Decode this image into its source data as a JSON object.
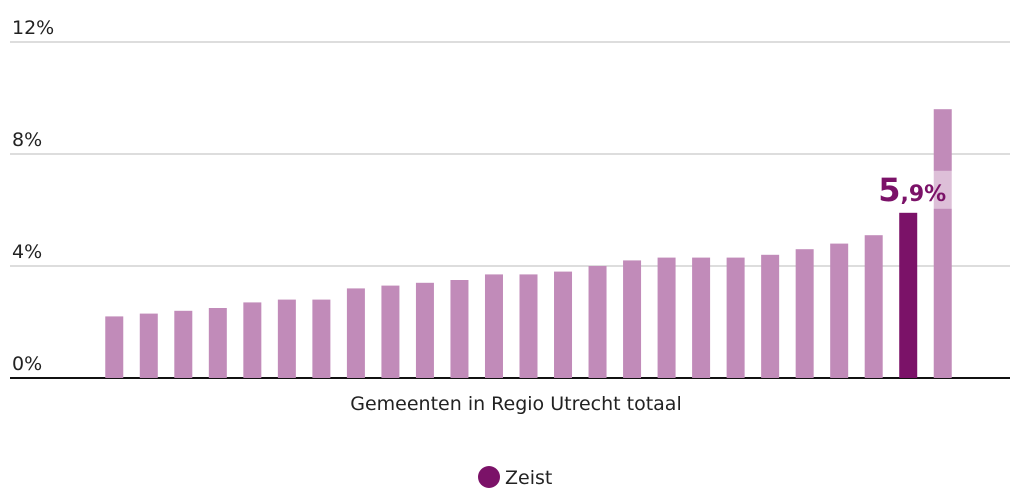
{
  "chart_data": {
    "type": "bar",
    "x_label": "Gemeenten in Regio Utrecht totaal",
    "categories": [
      null,
      null,
      null,
      null,
      null,
      null,
      null,
      null,
      null,
      null,
      null,
      null,
      null,
      null,
      null,
      null,
      null,
      null,
      null,
      null,
      null,
      null,
      null,
      null,
      null
    ],
    "values": [
      2.2,
      2.3,
      2.4,
      2.5,
      2.7,
      2.8,
      2.8,
      3.2,
      3.3,
      3.4,
      3.5,
      3.7,
      3.7,
      3.8,
      4.0,
      4.2,
      4.3,
      4.3,
      4.3,
      4.4,
      4.6,
      4.8,
      5.1,
      5.9,
      9.6
    ],
    "value_labels": [
      null,
      null,
      null,
      null,
      null,
      null,
      null,
      null,
      null,
      null,
      null,
      null,
      null,
      null,
      null,
      null,
      null,
      null,
      null,
      null,
      null,
      null,
      null,
      "5,9%",
      null
    ],
    "colors": [
      "#c18bb9",
      "#c18bb9",
      "#c18bb9",
      "#c18bb9",
      "#c18bb9",
      "#c18bb9",
      "#c18bb9",
      "#c18bb9",
      "#c18bb9",
      "#c18bb9",
      "#c18bb9",
      "#c18bb9",
      "#c18bb9",
      "#c18bb9",
      "#c18bb9",
      "#c18bb9",
      "#c18bb9",
      "#c18bb9",
      "#c18bb9",
      "#c18bb9",
      "#c18bb9",
      "#c18bb9",
      "#c18bb9",
      "#7b1268",
      "#c18bb9"
    ],
    "ylim": [
      0,
      12
    ],
    "yticks": [
      {
        "value": 0,
        "label": "0%"
      },
      {
        "value": 4,
        "label": "4%"
      },
      {
        "value": 8,
        "label": "8%"
      },
      {
        "value": 12,
        "label": "12%"
      }
    ],
    "grid": true,
    "legend": {
      "label": "Zeist",
      "color": "#7b1268"
    }
  }
}
